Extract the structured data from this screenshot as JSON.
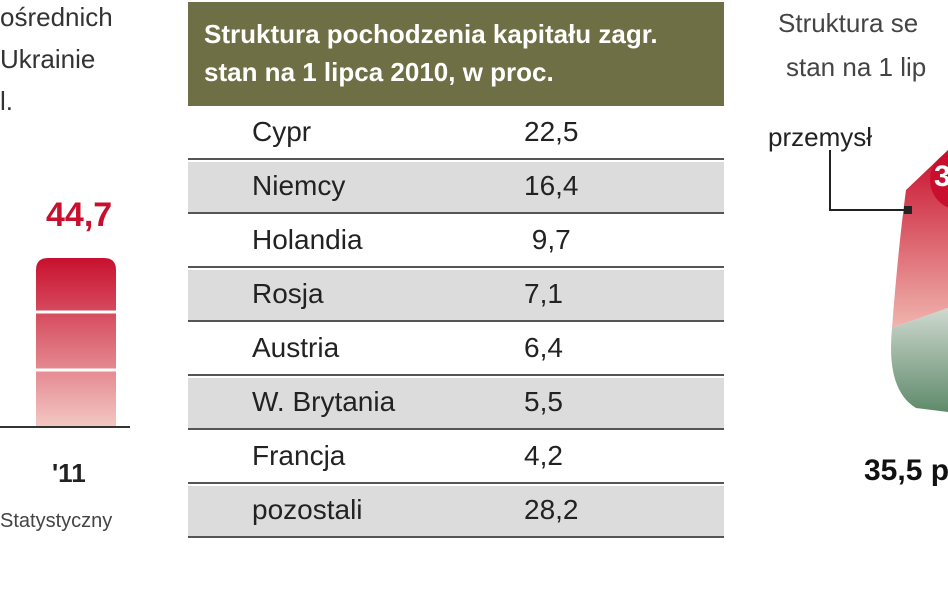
{
  "left_panel": {
    "title_lines": [
      "ośrednich",
      "Ukrainie",
      "l."
    ],
    "bar_value": "44,7",
    "year_label": "'11",
    "source": "Statystyczny",
    "colors": {
      "bar_top": "#c8102e",
      "bar_bottom": "#f3c9c4"
    }
  },
  "chart_data": {
    "type": "table",
    "title_lines": [
      "Struktura pochodzenia kapitału zagr.",
      "stan na 1 lipca 2010, w proc."
    ],
    "rows": [
      {
        "country": "Cypr",
        "value": "22,5"
      },
      {
        "country": "Niemcy",
        "value": "16,4"
      },
      {
        "country": "Holandia",
        "value": " 9,7"
      },
      {
        "country": "Rosja",
        "value": "7,1"
      },
      {
        "country": "Austria",
        "value": "6,4"
      },
      {
        "country": "W. Brytania",
        "value": "5,5"
      },
      {
        "country": "Francja",
        "value": "4,2"
      },
      {
        "country": "pozostali",
        "value": "28,2"
      }
    ]
  },
  "right_panel": {
    "title_lines": [
      "Struktura se",
      "stan na 1 lip"
    ],
    "segment_label": "przemysł",
    "segment_value_fragment": "3",
    "bottom_value": "35,5 p",
    "colors": {
      "red": "#c8102e",
      "green": "#5f8a6a"
    }
  }
}
